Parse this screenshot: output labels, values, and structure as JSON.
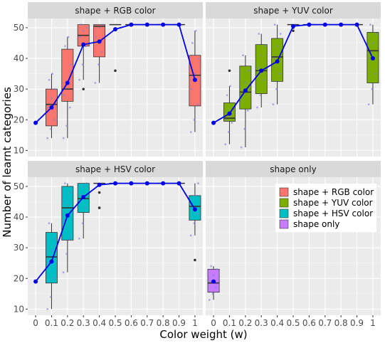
{
  "chart_data": {
    "type": "box",
    "xlabel": "Color weight (w)",
    "ylabel": "Number of learnt categories",
    "x_ticks": [
      "0",
      "0.1",
      "0.2",
      "0.3",
      "0.4",
      "0.5",
      "0.6",
      "0.7",
      "0.8",
      "0.9",
      "1"
    ],
    "y_ticks": [
      10,
      20,
      30,
      40,
      50
    ],
    "ylim": [
      8,
      53
    ],
    "legend": {
      "position": "inside-right",
      "entries": [
        {
          "label": "shape + RGB color",
          "color": "#F8766D"
        },
        {
          "label": "shape + YUV color",
          "color": "#7CAE00"
        },
        {
          "label": "shape + HSV color",
          "color": "#00BFC4"
        },
        {
          "label": "shape only",
          "color": "#C77CFF"
        }
      ]
    },
    "panels": [
      {
        "title": "shape + RGB color",
        "color": "#F8766D",
        "boxes": [
          {
            "x": "0.1",
            "q1": 18,
            "median": 25,
            "q3": 30,
            "whisker_low": 14,
            "whisker_high": 35,
            "outliers": []
          },
          {
            "x": "0.2",
            "q1": 26,
            "median": 30,
            "q3": 43,
            "whisker_low": 14,
            "whisker_high": 47,
            "outliers": []
          },
          {
            "x": "0.3",
            "q1": 44,
            "median": 47.5,
            "q3": 51,
            "whisker_low": 33,
            "whisker_high": 51,
            "outliers": [
              30
            ]
          },
          {
            "x": "0.4",
            "q1": 40.5,
            "median": 50.5,
            "q3": 51,
            "whisker_low": 32,
            "whisker_high": 51,
            "outliers": []
          },
          {
            "x": "0.5",
            "q1": 51,
            "median": 51,
            "q3": 51,
            "whisker_low": 51,
            "whisker_high": 51,
            "outliers": [
              36
            ]
          },
          {
            "x": "0.6",
            "q1": 51,
            "median": 51,
            "q3": 51,
            "whisker_low": 51,
            "whisker_high": 51,
            "outliers": []
          },
          {
            "x": "0.7",
            "q1": 51,
            "median": 51,
            "q3": 51,
            "whisker_low": 51,
            "whisker_high": 51,
            "outliers": []
          },
          {
            "x": "0.8",
            "q1": 51,
            "median": 51,
            "q3": 51,
            "whisker_low": 51,
            "whisker_high": 51,
            "outliers": []
          },
          {
            "x": "0.9",
            "q1": 51,
            "median": 51,
            "q3": 51,
            "whisker_low": 51,
            "whisker_high": 51,
            "outliers": []
          },
          {
            "x": "1",
            "q1": 24.5,
            "median": 34.5,
            "q3": 41,
            "whisker_low": 16,
            "whisker_high": 49,
            "outliers": []
          }
        ],
        "mean_line": {
          "x": [
            "0",
            "0.1",
            "0.2",
            "0.3",
            "0.4",
            "0.5",
            "0.6",
            "0.7",
            "0.8",
            "0.9",
            "1"
          ],
          "y": [
            19,
            24,
            32,
            44.5,
            45.5,
            49.5,
            51,
            51,
            51,
            51,
            33
          ]
        },
        "jitter": [
          {
            "x": "0.1",
            "y": [
              14,
              17,
              20,
              24,
              27,
              30,
              33,
              35
            ]
          },
          {
            "x": "0.2",
            "y": [
              14,
              18,
              24,
              28,
              32,
              38,
              44,
              47
            ]
          },
          {
            "x": "0.3",
            "y": [
              33,
              38,
              44,
              47,
              49,
              50,
              51
            ]
          },
          {
            "x": "0.4",
            "y": [
              32,
              38,
              42,
              47,
              50,
              51
            ]
          },
          {
            "x": "1",
            "y": [
              16,
              20,
              25,
              30,
              35,
              40,
              45,
              49
            ]
          }
        ]
      },
      {
        "title": "shape + YUV color",
        "color": "#7CAE00",
        "boxes": [
          {
            "x": "0.1",
            "q1": 19.5,
            "median": 20.5,
            "q3": 25.5,
            "whisker_low": 12,
            "whisker_high": 31,
            "outliers": [
              36
            ]
          },
          {
            "x": "0.2",
            "q1": 23.5,
            "median": 29,
            "q3": 37.5,
            "whisker_low": 11,
            "whisker_high": 41,
            "outliers": []
          },
          {
            "x": "0.3",
            "q1": 28.5,
            "median": 36,
            "q3": 44.5,
            "whisker_low": 24,
            "whisker_high": 48,
            "outliers": []
          },
          {
            "x": "0.4",
            "q1": 32.5,
            "median": 40.5,
            "q3": 46.5,
            "whisker_low": 25,
            "whisker_high": 51,
            "outliers": []
          },
          {
            "x": "0.5",
            "q1": 51,
            "median": 51,
            "q3": 51,
            "whisker_low": 51,
            "whisker_high": 51,
            "outliers": [
              50,
              49
            ]
          },
          {
            "x": "0.6",
            "q1": 51,
            "median": 51,
            "q3": 51,
            "whisker_low": 51,
            "whisker_high": 51,
            "outliers": []
          },
          {
            "x": "0.7",
            "q1": 51,
            "median": 51,
            "q3": 51,
            "whisker_low": 51,
            "whisker_high": 51,
            "outliers": []
          },
          {
            "x": "0.8",
            "q1": 51,
            "median": 51,
            "q3": 51,
            "whisker_low": 51,
            "whisker_high": 51,
            "outliers": []
          },
          {
            "x": "0.9",
            "q1": 51,
            "median": 51,
            "q3": 51,
            "whisker_low": 51,
            "whisker_high": 51,
            "outliers": []
          },
          {
            "x": "1",
            "q1": 32,
            "median": 42.5,
            "q3": 48.5,
            "whisker_low": 25,
            "whisker_high": 51,
            "outliers": []
          }
        ],
        "mean_line": {
          "x": [
            "0",
            "0.1",
            "0.2",
            "0.3",
            "0.4",
            "0.5",
            "0.6",
            "0.7",
            "0.8",
            "0.9",
            "1"
          ],
          "y": [
            19,
            22,
            29.5,
            36,
            39,
            50.5,
            51,
            51,
            51,
            51,
            40
          ]
        },
        "jitter": [
          {
            "x": "0.1",
            "y": [
              12,
              16,
              19,
              20,
              21,
              24,
              28,
              31
            ]
          },
          {
            "x": "0.2",
            "y": [
              11,
              17,
              23,
              28,
              32,
              36,
              41
            ]
          },
          {
            "x": "0.3",
            "y": [
              24,
              28,
              33,
              37,
              41,
              44,
              48
            ]
          },
          {
            "x": "0.4",
            "y": [
              25,
              30,
              35,
              40,
              44,
              48,
              51
            ]
          },
          {
            "x": "1",
            "y": [
              25,
              30,
              35,
              40,
              45,
              48,
              51
            ]
          }
        ]
      },
      {
        "title": "shape + HSV color",
        "color": "#00BFC4",
        "boxes": [
          {
            "x": "0.1",
            "q1": 18.5,
            "median": 27,
            "q3": 35,
            "whisker_low": 10,
            "whisker_high": 38,
            "outliers": []
          },
          {
            "x": "0.2",
            "q1": 32.5,
            "median": 43,
            "q3": 50,
            "whisker_low": 22,
            "whisker_high": 51,
            "outliers": []
          },
          {
            "x": "0.3",
            "q1": 41.5,
            "median": 46,
            "q3": 51,
            "whisker_low": 33,
            "whisker_high": 51,
            "outliers": []
          },
          {
            "x": "0.4",
            "q1": 51,
            "median": 51,
            "q3": 51,
            "whisker_low": 51,
            "whisker_high": 51,
            "outliers": [
              48,
              43
            ]
          },
          {
            "x": "0.5",
            "q1": 51,
            "median": 51,
            "q3": 51,
            "whisker_low": 51,
            "whisker_high": 51,
            "outliers": []
          },
          {
            "x": "0.6",
            "q1": 51,
            "median": 51,
            "q3": 51,
            "whisker_low": 51,
            "whisker_high": 51,
            "outliers": []
          },
          {
            "x": "0.7",
            "q1": 51,
            "median": 51,
            "q3": 51,
            "whisker_low": 51,
            "whisker_high": 51,
            "outliers": []
          },
          {
            "x": "0.8",
            "q1": 51,
            "median": 51,
            "q3": 51,
            "whisker_low": 51,
            "whisker_high": 51,
            "outliers": []
          },
          {
            "x": "0.9",
            "q1": 51,
            "median": 51,
            "q3": 51,
            "whisker_low": 51,
            "whisker_high": 51,
            "outliers": []
          },
          {
            "x": "1",
            "q1": 39,
            "median": 43.5,
            "q3": 47,
            "whisker_low": 34,
            "whisker_high": 51,
            "outliers": [
              26
            ]
          }
        ],
        "mean_line": {
          "x": [
            "0",
            "0.1",
            "0.2",
            "0.3",
            "0.4",
            "0.5",
            "0.6",
            "0.7",
            "0.8",
            "0.9",
            "1"
          ],
          "y": [
            19,
            25.5,
            40.5,
            46.5,
            50.5,
            51,
            51,
            51,
            51,
            51,
            42.5
          ]
        },
        "jitter": [
          {
            "x": "0.1",
            "y": [
              10,
              14,
              20,
              25,
              29,
              33,
              38
            ]
          },
          {
            "x": "0.2",
            "y": [
              22,
              28,
              33,
              39,
              44,
              48,
              51
            ]
          },
          {
            "x": "0.3",
            "y": [
              33,
              38,
              43,
              47,
              50,
              51
            ]
          },
          {
            "x": "1",
            "y": [
              34,
              38,
              41,
              44,
              47,
              51
            ]
          }
        ]
      },
      {
        "title": "shape only",
        "color": "#C77CFF",
        "boxes": [
          {
            "x": "0",
            "q1": 15.5,
            "median": 18.5,
            "q3": 23,
            "whisker_low": 13,
            "whisker_high": 24,
            "outliers": []
          }
        ],
        "mean_line": {
          "x": [
            "0"
          ],
          "y": [
            19
          ]
        },
        "jitter": [
          {
            "x": "0",
            "y": [
              13,
              15,
              17,
              19,
              21,
              23,
              24
            ]
          }
        ]
      }
    ]
  }
}
